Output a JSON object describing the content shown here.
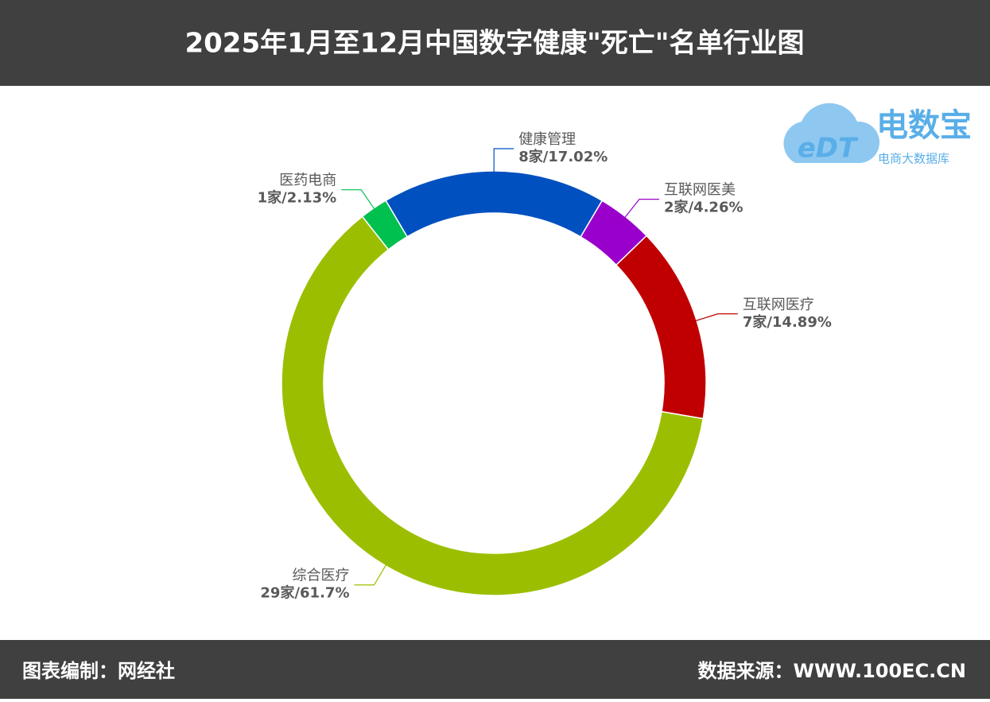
{
  "chart_data": {
    "type": "donut",
    "title": "2025年1月至12月中国数字健康\"死亡\"名单行业图",
    "categories": [
      "健康管理",
      "互联网医美",
      "互联网医疗",
      "综合医疗",
      "医药电商"
    ],
    "values": [
      8,
      2,
      7,
      29,
      1
    ],
    "value_labels": [
      "8家/17.02%",
      "2家/4.26%",
      "7家/14.89%",
      "29家/61.7%",
      "1家/2.13%"
    ],
    "colors": [
      "#0050c0",
      "#9900cc",
      "#c00000",
      "#9bbf00",
      "#00c050"
    ]
  },
  "footer": {
    "left": "图表编制：网经社",
    "right": "数据来源：WWW.100EC.CN"
  },
  "logo": {
    "mark": "eDT",
    "name": "电数宝",
    "tagline": "电商大数据库"
  }
}
